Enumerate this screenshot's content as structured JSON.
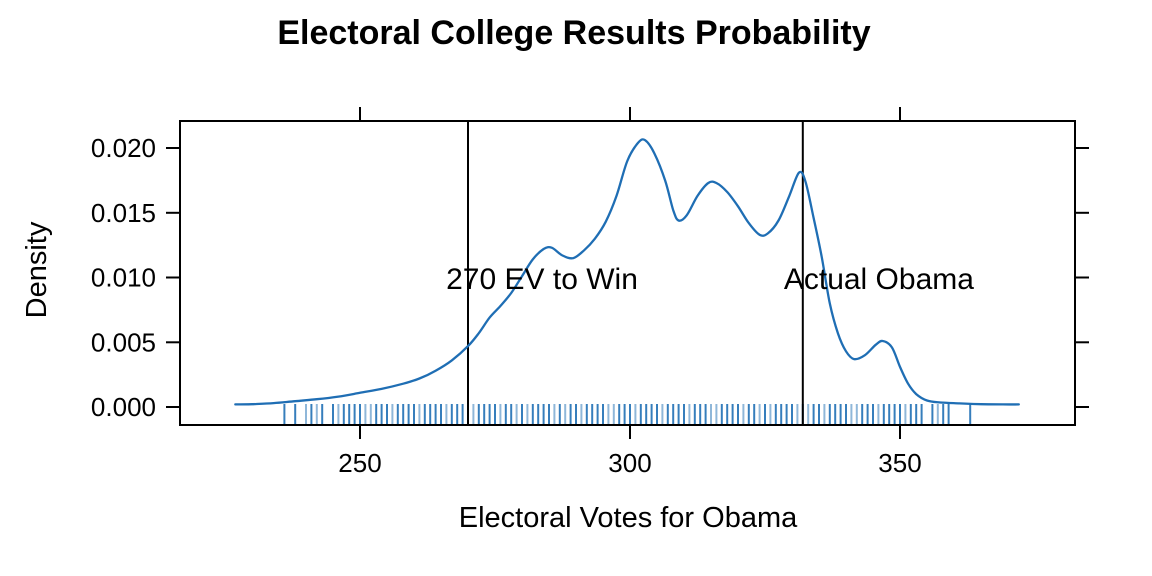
{
  "chart_data": {
    "type": "line",
    "subtype": "density",
    "title": "Electoral College Results Probability",
    "xlabel": "Electoral Votes for Obama",
    "ylabel": "Density",
    "x_ticks": [
      250,
      300,
      350
    ],
    "x_tick_labels": [
      "250",
      "300",
      "350"
    ],
    "y_ticks": [
      0,
      0.005,
      0.01,
      0.015,
      0.02
    ],
    "y_tick_labels": [
      "0.000",
      "0.005",
      "0.010",
      "0.015",
      "0.020"
    ],
    "xlim": [
      216.7,
      382.4
    ],
    "ylim": [
      -0.0014,
      0.0221
    ],
    "grid": false,
    "legend": "none",
    "frame": "box-with-ticks-all-sides",
    "curve_color": "#1f6eb4",
    "rug_color": "#2171b5",
    "line_color": "#000000",
    "vlines": [
      {
        "x": 270,
        "label": "270 EV to Win",
        "label_x": 283.7,
        "label_y": 0.00995
      },
      {
        "x": 332,
        "label": "Actual Obama",
        "label_x": 346.1,
        "label_y": 0.00995
      }
    ],
    "density_curve": [
      [
        226.9,
        0.0002
      ],
      [
        230,
        0.00022
      ],
      [
        234,
        0.0003
      ],
      [
        238,
        0.00045
      ],
      [
        242,
        0.0006
      ],
      [
        246,
        0.0008
      ],
      [
        250,
        0.0011
      ],
      [
        254,
        0.0014
      ],
      [
        258,
        0.0018
      ],
      [
        261,
        0.0022
      ],
      [
        264,
        0.0028
      ],
      [
        267,
        0.0036
      ],
      [
        270,
        0.0047
      ],
      [
        272,
        0.0057
      ],
      [
        274,
        0.0069
      ],
      [
        276,
        0.0078
      ],
      [
        278,
        0.0088
      ],
      [
        280,
        0.0101
      ],
      [
        282,
        0.0114
      ],
      [
        284,
        0.0122
      ],
      [
        285.5,
        0.0123
      ],
      [
        287.5,
        0.0117
      ],
      [
        289.5,
        0.0115
      ],
      [
        291.5,
        0.0121
      ],
      [
        293.5,
        0.013
      ],
      [
        295.5,
        0.0143
      ],
      [
        297.5,
        0.0163
      ],
      [
        299.5,
        0.019
      ],
      [
        301.5,
        0.0204
      ],
      [
        302.8,
        0.0206
      ],
      [
        304.5,
        0.0196
      ],
      [
        306.5,
        0.0175
      ],
      [
        308,
        0.0152
      ],
      [
        309,
        0.0144
      ],
      [
        310.5,
        0.0148
      ],
      [
        312.5,
        0.0163
      ],
      [
        314.5,
        0.0173
      ],
      [
        316,
        0.0173
      ],
      [
        318,
        0.0166
      ],
      [
        320,
        0.0155
      ],
      [
        322,
        0.0142
      ],
      [
        324,
        0.0133
      ],
      [
        325.5,
        0.0134
      ],
      [
        327.5,
        0.0144
      ],
      [
        329.5,
        0.0163
      ],
      [
        331.3,
        0.0181
      ],
      [
        332.5,
        0.0174
      ],
      [
        334,
        0.0146
      ],
      [
        335.5,
        0.0116
      ],
      [
        337,
        0.008
      ],
      [
        338.5,
        0.0057
      ],
      [
        340,
        0.0043
      ],
      [
        341.5,
        0.0037
      ],
      [
        343.5,
        0.004
      ],
      [
        345.5,
        0.0048
      ],
      [
        346.8,
        0.0051
      ],
      [
        348.5,
        0.0046
      ],
      [
        350,
        0.0031
      ],
      [
        351.5,
        0.0018
      ],
      [
        353,
        0.001
      ],
      [
        355,
        0.0005
      ],
      [
        357.5,
        0.00035
      ],
      [
        361,
        0.00028
      ],
      [
        365,
        0.00022
      ],
      [
        369,
        0.0002
      ],
      [
        372,
        0.0002
      ]
    ],
    "rug_values": [
      236,
      238,
      240,
      241,
      242,
      243,
      245,
      246,
      247,
      248,
      249,
      250,
      251,
      252,
      253,
      254,
      255,
      256,
      257,
      258,
      259,
      260,
      261,
      262,
      263,
      264,
      265,
      266,
      267,
      268,
      269,
      270,
      271,
      272,
      273,
      274,
      275,
      276,
      277,
      278,
      279,
      280,
      281,
      282,
      283,
      284,
      285,
      286,
      287,
      288,
      289,
      290,
      291,
      292,
      293,
      294,
      295,
      296,
      297,
      298,
      299,
      300,
      301,
      302,
      303,
      304,
      305,
      306,
      307,
      308,
      309,
      310,
      311,
      312,
      313,
      314,
      315,
      316,
      317,
      318,
      319,
      320,
      321,
      322,
      323,
      324,
      325,
      326,
      327,
      328,
      329,
      330,
      331,
      332,
      333,
      334,
      335,
      336,
      337,
      338,
      339,
      340,
      341,
      342,
      343,
      344,
      345,
      346,
      347,
      348,
      349,
      350,
      351,
      352,
      353,
      354,
      356,
      357,
      358,
      359,
      363
    ]
  }
}
